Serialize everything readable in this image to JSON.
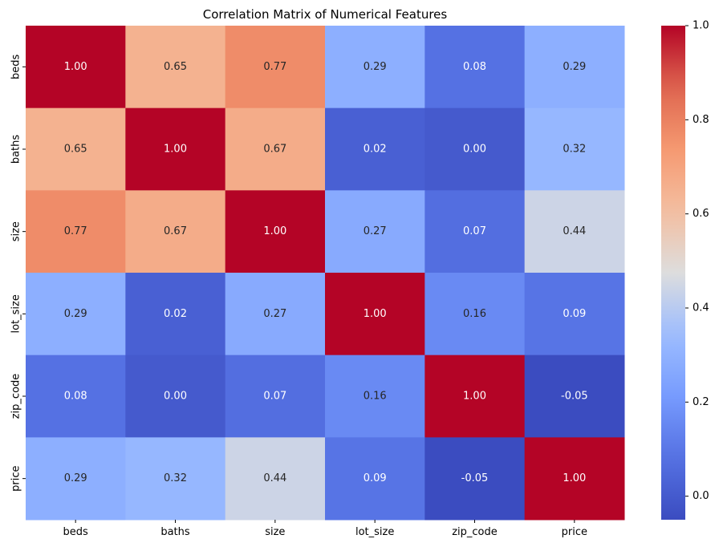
{
  "chart_data": {
    "type": "heatmap",
    "title": "Correlation Matrix of Numerical Features",
    "xlabel": "",
    "ylabel": "",
    "rows": [
      "beds",
      "baths",
      "size",
      "lot_size",
      "zip_code",
      "price"
    ],
    "columns": [
      "beds",
      "baths",
      "size",
      "lot_size",
      "zip_code",
      "price"
    ],
    "values": [
      [
        1.0,
        0.65,
        0.77,
        0.29,
        0.08,
        0.29
      ],
      [
        0.65,
        1.0,
        0.67,
        0.02,
        -0.0,
        0.32
      ],
      [
        0.77,
        0.67,
        1.0,
        0.27,
        0.07,
        0.44
      ],
      [
        0.29,
        0.02,
        0.27,
        1.0,
        0.16,
        0.09
      ],
      [
        0.08,
        -0.0,
        0.07,
        0.16,
        1.0,
        -0.05
      ],
      [
        0.29,
        0.32,
        0.44,
        0.09,
        -0.05,
        1.0
      ]
    ],
    "annotation_format": "0.00",
    "colormap": "coolwarm",
    "colorbar": {
      "range": [
        -0.05,
        1.0
      ],
      "ticks": [
        0.0,
        0.2,
        0.4,
        0.6,
        0.8,
        1.0
      ],
      "tick_labels": [
        "0.0",
        "0.2",
        "0.4",
        "0.6",
        "0.8",
        "1.0"
      ]
    },
    "grid": false,
    "legend": "colorbar-right"
  }
}
